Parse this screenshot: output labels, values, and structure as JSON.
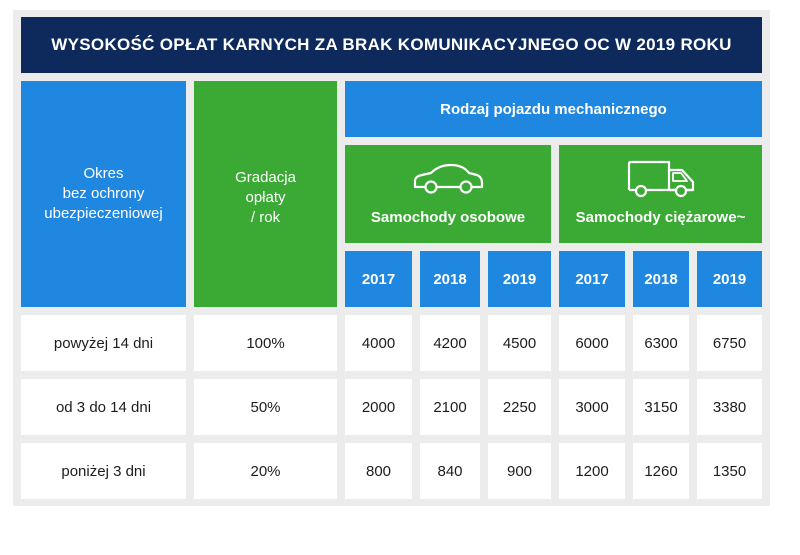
{
  "title": "WYSOKOŚĆ OPŁAT KARNYCH ZA BRAK KOMUNIKACYJNEGO OC W 2019 ROKU",
  "header": {
    "period_line1": "Okres",
    "period_line2": "bez ochrony",
    "period_line3": "ubezpieczeniowej",
    "grad_line1": "Gradacja",
    "grad_line2": "opłaty",
    "grad_line3": "/ rok",
    "vehicle_type": "Rodzaj pojazdu mechanicznego",
    "cars": "Samochody osobowe",
    "trucks": "Samochody ciężarowe~",
    "car_icon": "car-icon",
    "truck_icon": "truck-icon"
  },
  "years": [
    "2017",
    "2018",
    "2019",
    "2017",
    "2018",
    "2019"
  ],
  "rows": [
    {
      "period": "powyżej 14 dni",
      "gradation": "100%",
      "values": [
        "4000",
        "4200",
        "4500",
        "6000",
        "6300",
        "6750"
      ]
    },
    {
      "period": "od 3 do 14 dni",
      "gradation": "50%",
      "values": [
        "2000",
        "2100",
        "2250",
        "3000",
        "3150",
        "3380"
      ]
    },
    {
      "period": "poniżej 3 dni",
      "gradation": "20%",
      "values": [
        "800",
        "840",
        "900",
        "1200",
        "1260",
        "1350"
      ]
    }
  ],
  "colors": {
    "navy": "#0e2a5c",
    "blue": "#1f87e0",
    "green": "#3aaa35",
    "frame": "#ececec"
  }
}
